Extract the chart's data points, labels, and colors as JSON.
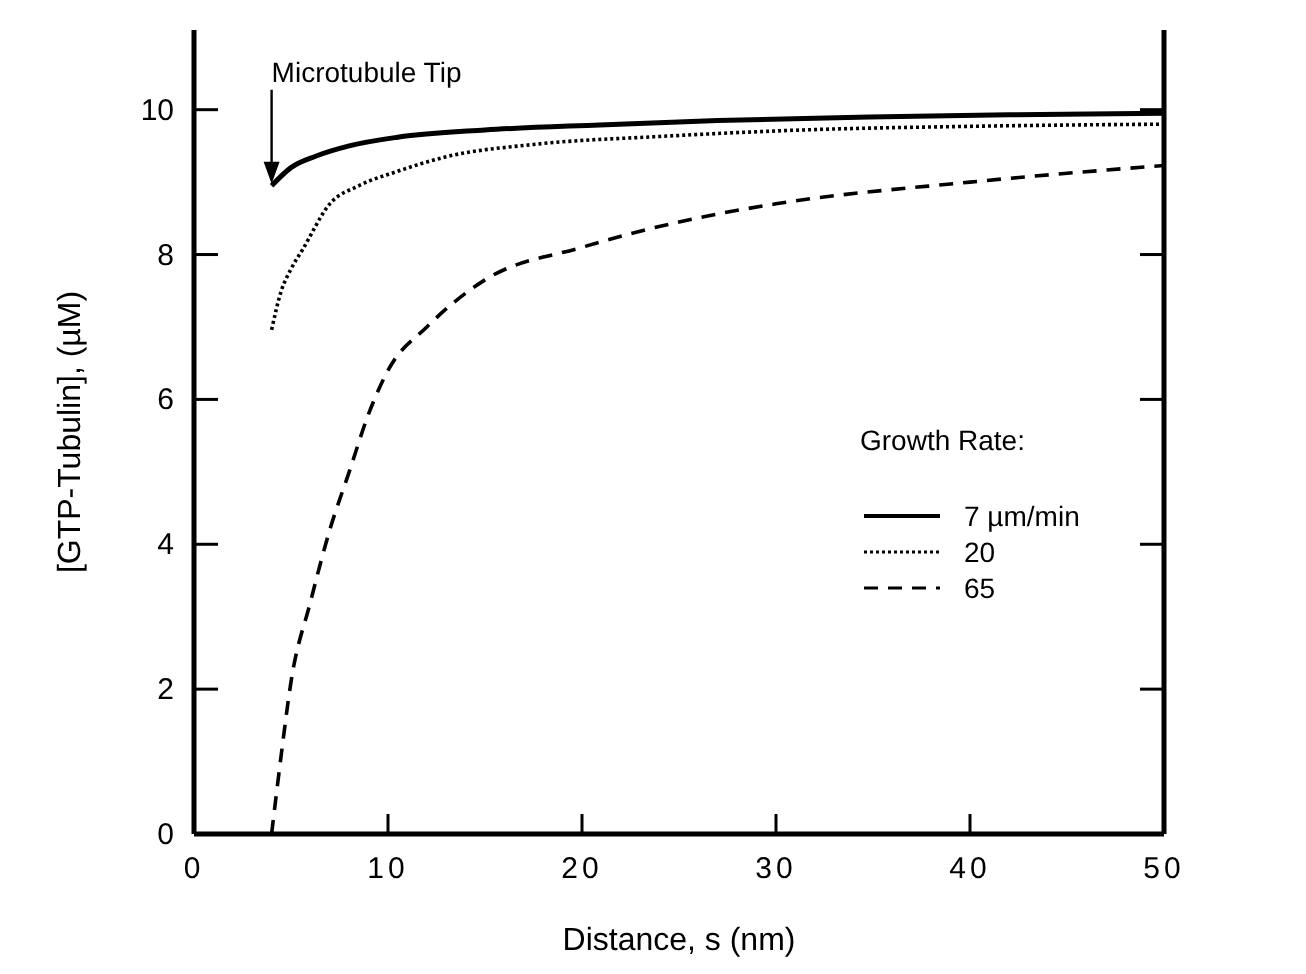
{
  "chart_data": {
    "type": "line",
    "xlabel": "Distance, s (nm)",
    "ylabel": "[GTP-Tubulin], (µM)",
    "legend_title": "Growth Rate:",
    "legend": "right",
    "grid": false,
    "xlim": [
      0,
      50
    ],
    "xticks": [
      0,
      10,
      20,
      30,
      40,
      50
    ],
    "ylim": [
      0,
      11.1
    ],
    "yticks": [
      0,
      2,
      4,
      6,
      8,
      10
    ],
    "annotations": [
      "Microtubule Tip"
    ],
    "series": [
      {
        "name": "7 µm/min",
        "color": "#000000",
        "line_style": "solid",
        "x": [
          4,
          5,
          6.3,
          8,
          10.5,
          15,
          20.9,
          27,
          34.8,
          42,
          50
        ],
        "values": [
          8.95,
          9.2,
          9.36,
          9.5,
          9.62,
          9.72,
          9.79,
          9.85,
          9.9,
          9.93,
          9.95
        ]
      },
      {
        "name": "20",
        "color": "#000000",
        "line_style": "dotted",
        "x": [
          4,
          4.5,
          5,
          5.6,
          7,
          8.5,
          10.5,
          13,
          17.5,
          24,
          31.4,
          40,
          50
        ],
        "values": [
          6.96,
          7.5,
          7.8,
          8.07,
          8.7,
          8.95,
          9.15,
          9.35,
          9.52,
          9.63,
          9.72,
          9.77,
          9.8
        ]
      },
      {
        "name": "65",
        "color": "#000000",
        "line_style": "dashed",
        "x": [
          4,
          4.5,
          5,
          6,
          7,
          8,
          9,
          10,
          12,
          15,
          20,
          25,
          30,
          40,
          50
        ],
        "values": [
          0,
          1.1,
          2.1,
          3.2,
          4.2,
          5,
          5.8,
          6.4,
          7,
          7.65,
          8.1,
          8.45,
          8.7,
          9,
          9.23
        ]
      }
    ]
  }
}
